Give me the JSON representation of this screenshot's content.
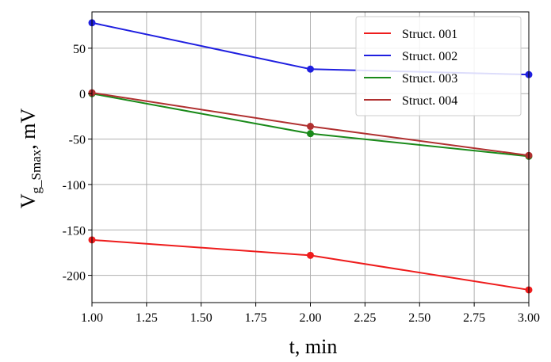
{
  "chart_data": {
    "type": "line",
    "xlabel": "t, min",
    "ylabel": {
      "main": "V",
      "sub": "g_Smax",
      "unit": ", mV"
    },
    "xlim": [
      1.0,
      3.0
    ],
    "ylim": [
      -230,
      90
    ],
    "xticks": [
      "1.00",
      "1.25",
      "1.50",
      "1.75",
      "2.00",
      "2.25",
      "2.50",
      "2.75",
      "3.00"
    ],
    "xtick_values": [
      1.0,
      1.25,
      1.5,
      1.75,
      2.0,
      2.25,
      2.5,
      2.75,
      3.0
    ],
    "yticks": [
      "50",
      "0",
      "-50",
      "-100",
      "-150",
      "-200"
    ],
    "ytick_values": [
      50,
      0,
      -50,
      -100,
      -150,
      -200
    ],
    "grid": true,
    "legend_position": "top-right",
    "x": [
      1.0,
      2.0,
      3.0
    ],
    "series": [
      {
        "name": "Struct. 001",
        "color": "#ee1c1c",
        "values": [
          -161,
          -178,
          -216
        ]
      },
      {
        "name": "Struct. 002",
        "color": "#1f1fe0",
        "values": [
          78,
          27,
          21
        ]
      },
      {
        "name": "Struct. 003",
        "color": "#1a8a1a",
        "values": [
          0,
          -44,
          -69
        ]
      },
      {
        "name": "Struct. 004",
        "color": "#b03030",
        "values": [
          1,
          -36,
          -68
        ]
      }
    ]
  }
}
